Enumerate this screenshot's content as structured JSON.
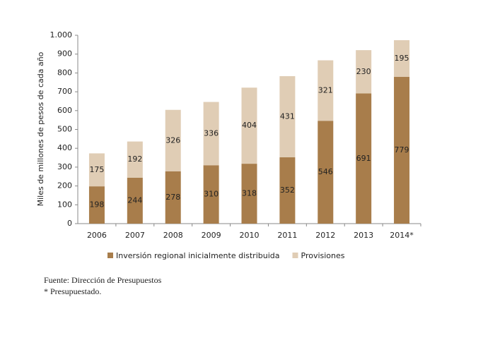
{
  "chart_data": {
    "type": "stacked_bar",
    "y_label": "Miles de millones de pesos de cada año",
    "categories": [
      "2006",
      "2007",
      "2008",
      "2009",
      "2010",
      "2011",
      "2012",
      "2013",
      "2014*"
    ],
    "series": [
      {
        "name": "Inversión regional inicialmente distribuida",
        "color": "#a87d4b",
        "values": [
          198,
          244,
          278,
          310,
          318,
          352,
          546,
          691,
          779
        ]
      },
      {
        "name": "Provisiones",
        "color": "#e0cdb5",
        "values": [
          175,
          192,
          326,
          336,
          404,
          431,
          321,
          230,
          195
        ]
      }
    ],
    "ylim": [
      0,
      1000
    ],
    "yticks": [
      0,
      100,
      200,
      300,
      400,
      500,
      600,
      700,
      800,
      900,
      {
        "value": 1000,
        "label": "1.000"
      }
    ],
    "grid": false,
    "legend": "bottom"
  },
  "notes": [
    "Fuente: Dirección de Presupuestos",
    "* Presupuestado."
  ]
}
